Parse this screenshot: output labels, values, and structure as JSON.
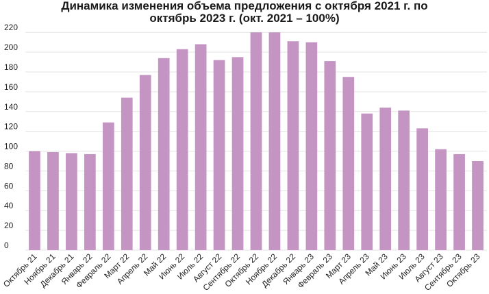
{
  "chart_data": {
    "type": "bar",
    "title_line1": "Динамика изменения объема предложения с октября 2021 г. по",
    "title_line2": "октябрь 2023 г. (окт. 2021 – 100%)",
    "categories": [
      "Октябрь 21",
      "Ноябрь 21",
      "Декабрь 21",
      "Январь 22",
      "Февраль 22",
      "Март 22",
      "Апрель 22",
      "Май 22",
      "Июнь 22",
      "Июль 22",
      "Август 22",
      "Сентябрь 22",
      "Октябрь 22",
      "Ноябрь 22",
      "Декабрь 22",
      "Январь 23",
      "Февраль 23",
      "Март 23",
      "Апрель 23",
      "Май 23",
      "Июнь 23",
      "Июль 23",
      "Август 23",
      "Сентябрь 23",
      "Октябрь 23"
    ],
    "values": [
      100,
      99,
      98,
      97,
      129,
      154,
      177,
      194,
      203,
      208,
      192,
      195,
      220,
      220,
      211,
      210,
      191,
      175,
      138,
      144,
      141,
      123,
      102,
      97,
      90
    ],
    "y_ticks": [
      "0",
      "20",
      "40",
      "60",
      "80",
      "100",
      "120",
      "140",
      "160",
      "180",
      "200",
      "220"
    ],
    "ylim": [
      0,
      225
    ],
    "grid": true,
    "legend": "none",
    "bar_color": "#c494c3",
    "grid_color": "#e3e3e3"
  }
}
